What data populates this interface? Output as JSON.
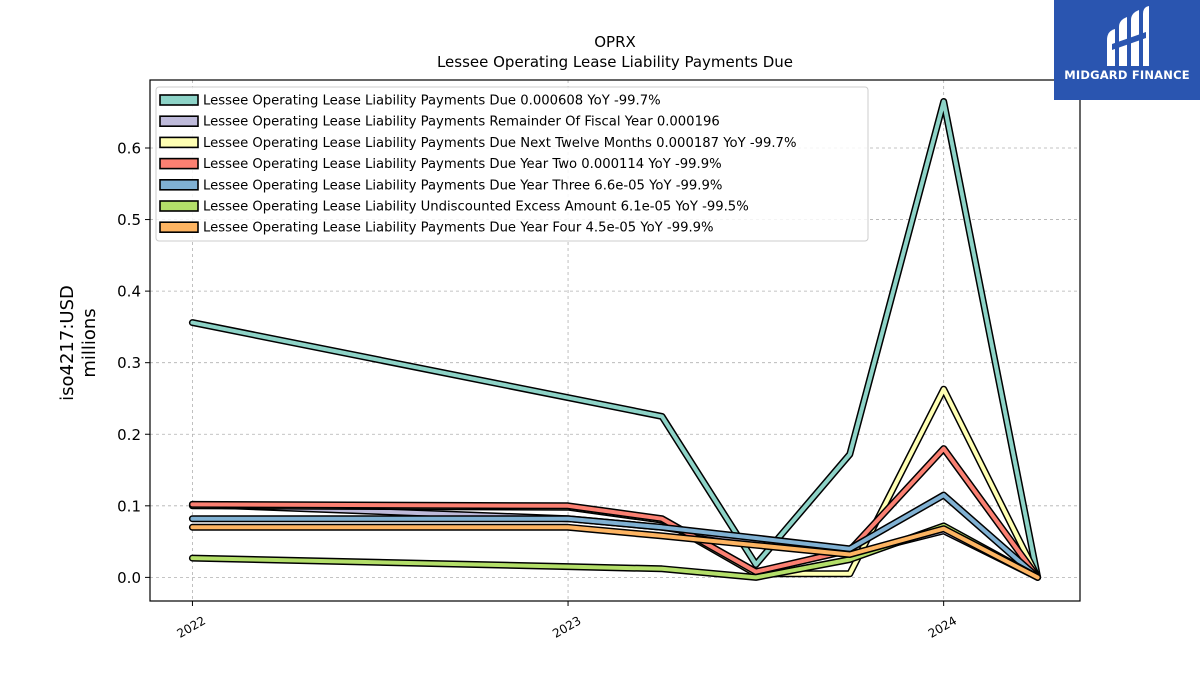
{
  "brand": {
    "name": "MIDGARD FINANCE",
    "bg": "#2a55b0"
  },
  "chart_data": {
    "type": "line",
    "title": "OPRX",
    "subtitle": "Lessee Operating Lease Liability Payments Due",
    "ylabel": "iso4217:USD",
    "ylabel2": "millions",
    "xlabel": "",
    "xlim": [
      2021.887,
      2024.363
    ],
    "ylim": [
      -0.033,
      0.695
    ],
    "xticks": [
      {
        "value": 2022,
        "label": "2022"
      },
      {
        "value": 2023,
        "label": "2023"
      },
      {
        "value": 2024,
        "label": "2024"
      }
    ],
    "yticks": [
      {
        "value": 0.0,
        "label": "0.0"
      },
      {
        "value": 0.1,
        "label": "0.1"
      },
      {
        "value": 0.2,
        "label": "0.2"
      },
      {
        "value": 0.3,
        "label": "0.3"
      },
      {
        "value": 0.4,
        "label": "0.4"
      },
      {
        "value": 0.5,
        "label": "0.5"
      },
      {
        "value": 0.6,
        "label": "0.6"
      }
    ],
    "grid": true,
    "legend_position": "top-left",
    "series": [
      {
        "name": "Lessee Operating Lease Liability Payments Due  0.000608 YoY -99.7%",
        "color": "#8dd3c7",
        "x": [
          2022.0,
          2023.25,
          2023.5,
          2023.75,
          2024.0,
          2024.25
        ],
        "y": [
          0.356,
          0.225,
          0.018,
          0.172,
          0.665,
          0.0006
        ]
      },
      {
        "name": "Lessee Operating Lease Liability Payments Remainder Of Fiscal Year  0.000196",
        "color": "#bebada",
        "x": [
          2022.0,
          2023.0,
          2023.25,
          2023.5,
          2023.75,
          2024.0,
          2024.25
        ],
        "y": [
          0.102,
          0.082,
          0.07,
          0.05,
          0.032,
          0.065,
          0.0002
        ]
      },
      {
        "name": "Lessee Operating Lease Liability Payments Due Next Twelve Months  0.000187 YoY -99.7%",
        "color": "#ffffb3",
        "x": [
          2022.0,
          2023.0,
          2023.25,
          2023.5,
          2023.75,
          2024.0,
          2024.25
        ],
        "y": [
          0.1,
          0.098,
          0.08,
          0.005,
          0.005,
          0.263,
          0.0002
        ]
      },
      {
        "name": "Lessee Operating Lease Liability Payments Due Year Two  0.000114 YoY -99.9%",
        "color": "#fb8072",
        "x": [
          2022.0,
          2023.0,
          2023.25,
          2023.5,
          2023.75,
          2024.0,
          2024.25
        ],
        "y": [
          0.102,
          0.1,
          0.082,
          0.008,
          0.038,
          0.18,
          0.0001
        ]
      },
      {
        "name": "Lessee Operating Lease Liability Payments Due Year Three  6.6e-05 YoY -99.9%",
        "color": "#80b1d3",
        "x": [
          2022.0,
          2023.0,
          2023.25,
          2023.5,
          2023.75,
          2024.0,
          2024.25
        ],
        "y": [
          0.082,
          0.082,
          0.07,
          0.055,
          0.04,
          0.115,
          0.0001
        ]
      },
      {
        "name": "Lessee Operating Lease Liability Undiscounted Excess Amount  6.1e-05 YoY -99.5%",
        "color": "#b3de69",
        "x": [
          2022.0,
          2023.0,
          2023.25,
          2023.5,
          2023.75,
          2024.0,
          2024.25
        ],
        "y": [
          0.027,
          0.015,
          0.012,
          0.0,
          0.025,
          0.072,
          0.0001
        ]
      },
      {
        "name": "Lessee Operating Lease Liability Payments Due Year Four  4.5e-05 YoY -99.9%",
        "color": "#fdb462",
        "x": [
          2022.0,
          2023.0,
          2023.25,
          2023.5,
          2023.75,
          2024.0,
          2024.25
        ],
        "y": [
          0.07,
          0.07,
          0.058,
          0.045,
          0.032,
          0.068,
          0.0
        ]
      }
    ]
  }
}
